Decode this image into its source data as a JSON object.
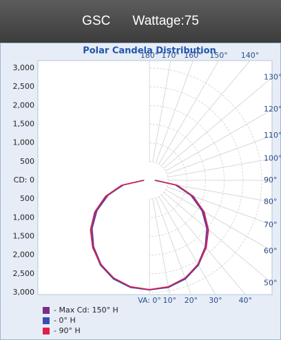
{
  "header": {
    "name": "GSC",
    "wattage": "Wattage:75"
  },
  "chart_data": {
    "type": "polar",
    "title": "Polar Candela Distribution",
    "rlim": [
      0,
      3000
    ],
    "rticks_upper": [
      {
        "value": 3000,
        "label": "3,000"
      },
      {
        "value": 2500,
        "label": "2,500"
      },
      {
        "value": 2000,
        "label": "2,000"
      },
      {
        "value": 1500,
        "label": "1,500"
      },
      {
        "value": 1000,
        "label": "1,000"
      },
      500,
      {
        "value": 0,
        "label": "CD: 0"
      }
    ],
    "rticks_lower": [
      500,
      {
        "value": 1000,
        "label": "1,000"
      },
      {
        "value": 1500,
        "label": "1,500"
      },
      {
        "value": 2000,
        "label": "2,000"
      },
      {
        "value": 2500,
        "label": "2,500"
      },
      {
        "value": 3000,
        "label": "3,000"
      }
    ],
    "angle_ticks": [
      {
        "value": 0,
        "label": "VA: 0°"
      },
      {
        "value": 10,
        "label": "10°"
      },
      {
        "value": 20,
        "label": "20°"
      },
      {
        "value": 30,
        "label": "30°"
      },
      {
        "value": 40,
        "label": "40°"
      },
      {
        "value": 50,
        "label": "50°"
      },
      {
        "value": 60,
        "label": "60°"
      },
      {
        "value": 70,
        "label": "70°"
      },
      {
        "value": 80,
        "label": "80°"
      },
      {
        "value": 90,
        "label": "90°"
      },
      {
        "value": 100,
        "label": "100°"
      },
      {
        "value": 110,
        "label": "110°"
      },
      {
        "value": 120,
        "label": "120°"
      },
      {
        "value": 130,
        "label": "130°"
      },
      {
        "value": 140,
        "label": "140°"
      },
      {
        "value": 150,
        "label": "150°"
      },
      {
        "value": 160,
        "label": "160°"
      },
      {
        "value": 170,
        "label": "170°"
      },
      {
        "value": 180,
        "label": "180°"
      }
    ],
    "angles": [
      0,
      10,
      20,
      30,
      40,
      50,
      60,
      70,
      80,
      90
    ],
    "series": [
      {
        "name": "- Max Cd: 150° H",
        "color": "#7b2d8b",
        "values": [
          2930,
          2900,
          2790,
          2590,
          2320,
          2000,
          1620,
          1180,
          720,
          160
        ]
      },
      {
        "name": "- 0° H",
        "color": "#3a4fb0",
        "values": [
          2930,
          2910,
          2810,
          2620,
          2350,
          2040,
          1660,
          1200,
          700,
          140
        ]
      },
      {
        "name": "- 90° H",
        "color": "#e0204a",
        "values": [
          2920,
          2890,
          2780,
          2600,
          2360,
          2060,
          1690,
          1250,
          760,
          170
        ]
      }
    ]
  }
}
